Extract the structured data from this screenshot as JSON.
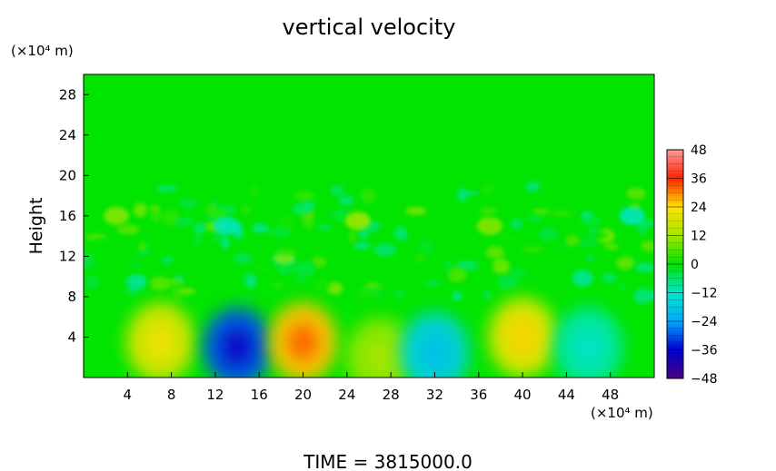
{
  "chart_data": {
    "type": "heatmap",
    "title": "vertical velocity",
    "ylabel": "Height",
    "xunit": "(×10⁴ m)",
    "yunit": "(×10⁴ m)",
    "footer": "TIME =  3815000.0",
    "xlim": [
      0,
      52
    ],
    "ylim": [
      0,
      30
    ],
    "x_ticks": [
      4,
      8,
      12,
      16,
      20,
      24,
      28,
      32,
      36,
      40,
      44,
      48
    ],
    "y_ticks": [
      4,
      8,
      12,
      16,
      20,
      24,
      28
    ],
    "colorbar": {
      "ticks": [
        48,
        36,
        24,
        12,
        0,
        -12,
        -24,
        -36,
        -48
      ],
      "tick_labels": [
        "48",
        "36",
        "24",
        "12",
        "0",
        "−12",
        "−24",
        "−36",
        "−48"
      ],
      "range": [
        -48,
        48
      ],
      "colormap": "rainbow (purple to red)"
    },
    "features": [
      {
        "x": 7,
        "y": 3.5,
        "value": 18
      },
      {
        "x": 14,
        "y": 3,
        "value": -30
      },
      {
        "x": 20,
        "y": 3.5,
        "value": 26
      },
      {
        "x": 27,
        "y": 2,
        "value": 10
      },
      {
        "x": 32,
        "y": 2.5,
        "value": -16
      },
      {
        "x": 40,
        "y": 4,
        "value": 20
      },
      {
        "x": 46,
        "y": 3,
        "value": -10
      },
      {
        "x": 3,
        "y": 16,
        "value": 10
      },
      {
        "x": 13,
        "y": 15,
        "value": -12
      },
      {
        "x": 25,
        "y": 15.5,
        "value": 12
      },
      {
        "x": 37,
        "y": 15,
        "value": 10
      },
      {
        "x": 50,
        "y": 16,
        "value": -12
      }
    ]
  }
}
